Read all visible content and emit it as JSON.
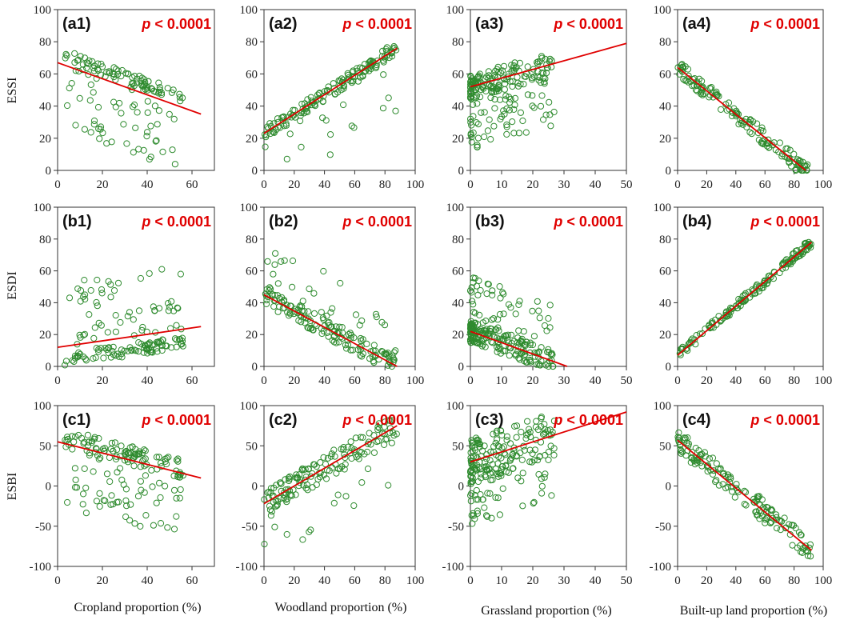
{
  "chart_data": {
    "type": "scatter",
    "layout": "3x4 grid",
    "marker": {
      "style": "open-circle",
      "color": "#2e8b2e"
    },
    "trend_line_color": "#e00000",
    "row_labels": [
      "ESSI",
      "ESDI",
      "ESBI"
    ],
    "column_labels": [
      "Cropland proportion (%)",
      "Woodland proportion (%)",
      "Grassland proportion (%)",
      "Built-up land proportion (%)"
    ],
    "panels": [
      {
        "label": "(a1)",
        "row": 0,
        "col": 0,
        "p_prefix": "p",
        "p_text": " < 0.0001",
        "xlim": [
          0,
          70
        ],
        "xticks": [
          0,
          20,
          40,
          60
        ],
        "ylim": [
          0,
          100
        ],
        "yticks": [
          0,
          20,
          40,
          60,
          80,
          100
        ],
        "trend": [
          [
            0,
            67
          ],
          [
            64,
            35
          ]
        ],
        "cluster": {
          "x": [
            3,
            56
          ],
          "tight_pts": 80,
          "tight_spread": 4,
          "loose_pts": 60,
          "loose_low": 12
        }
      },
      {
        "label": "(a2)",
        "row": 0,
        "col": 1,
        "p_prefix": "p",
        "p_text": " < 0.0001",
        "xlim": [
          0,
          100
        ],
        "xticks": [
          0,
          20,
          40,
          60,
          80,
          100
        ],
        "ylim": [
          0,
          100
        ],
        "yticks": [
          0,
          20,
          40,
          60,
          80,
          100
        ],
        "trend": [
          [
            0,
            23
          ],
          [
            88,
            76
          ]
        ],
        "cluster": {
          "x": [
            0,
            88
          ],
          "tight_pts": 140,
          "tight_spread": 4,
          "loose_pts": 20,
          "loose_low": 0
        }
      },
      {
        "label": "(a3)",
        "row": 0,
        "col": 2,
        "p_prefix": "p",
        "p_text": " < 0.0001",
        "xlim": [
          0,
          50
        ],
        "xticks": [
          0,
          10,
          20,
          30,
          40,
          50
        ],
        "ylim": [
          0,
          100
        ],
        "yticks": [
          0,
          20,
          40,
          60,
          80,
          100
        ],
        "trend": [
          [
            0,
            52
          ],
          [
            50,
            79
          ]
        ],
        "cluster": {
          "x": [
            0,
            27
          ],
          "tight_pts": 120,
          "tight_spread": 8,
          "loose_pts": 90,
          "loose_low": 10
        }
      },
      {
        "label": "(a4)",
        "row": 0,
        "col": 3,
        "p_prefix": "p",
        "p_text": " < 0.0001",
        "xlim": [
          0,
          100
        ],
        "xticks": [
          0,
          20,
          40,
          60,
          80,
          100
        ],
        "ylim": [
          0,
          100
        ],
        "yticks": [
          0,
          20,
          40,
          60,
          80,
          100
        ],
        "trend": [
          [
            0,
            64
          ],
          [
            88,
            0
          ]
        ],
        "cluster": {
          "x": [
            0,
            92
          ],
          "tight_pts": 140,
          "tight_spread": 5,
          "loose_pts": 0,
          "loose_low": 0
        }
      },
      {
        "label": "(b1)",
        "row": 1,
        "col": 0,
        "p_prefix": "p",
        "p_text": " < 0.0001",
        "xlim": [
          0,
          70
        ],
        "xticks": [
          0,
          20,
          40,
          60
        ],
        "ylim": [
          0,
          100
        ],
        "yticks": [
          0,
          20,
          40,
          60,
          80,
          100
        ],
        "trend": [
          [
            0,
            12
          ],
          [
            64,
            25
          ]
        ],
        "cluster": {
          "x": [
            3,
            56
          ],
          "tight_pts": 90,
          "tight_spread": 4,
          "loose_pts": 60,
          "loose_low": 20
        }
      },
      {
        "label": "(b2)",
        "row": 1,
        "col": 1,
        "p_prefix": "p",
        "p_text": " < 0.0001",
        "xlim": [
          0,
          100
        ],
        "xticks": [
          0,
          20,
          40,
          60,
          80,
          100
        ],
        "ylim": [
          0,
          100
        ],
        "yticks": [
          0,
          20,
          40,
          60,
          80,
          100
        ],
        "trend": [
          [
            0,
            45
          ],
          [
            88,
            0
          ]
        ],
        "cluster": {
          "x": [
            0,
            88
          ],
          "tight_pts": 140,
          "tight_spread": 6,
          "loose_pts": 30,
          "loose_low": 0
        }
      },
      {
        "label": "(b3)",
        "row": 1,
        "col": 2,
        "p_prefix": "p",
        "p_text": " < 0.0001",
        "xlim": [
          0,
          50
        ],
        "xticks": [
          0,
          10,
          20,
          30,
          40,
          50
        ],
        "ylim": [
          0,
          100
        ],
        "yticks": [
          0,
          20,
          40,
          60,
          80,
          100
        ],
        "trend": [
          [
            0,
            22
          ],
          [
            31,
            0
          ]
        ],
        "cluster": {
          "x": [
            0,
            27
          ],
          "tight_pts": 170,
          "tight_spread": 7,
          "loose_pts": 60,
          "loose_low": 0
        }
      },
      {
        "label": "(b4)",
        "row": 1,
        "col": 3,
        "p_prefix": "p",
        "p_text": " < 0.0001",
        "xlim": [
          0,
          100
        ],
        "xticks": [
          0,
          20,
          40,
          60,
          80,
          100
        ],
        "ylim": [
          0,
          100
        ],
        "yticks": [
          0,
          20,
          40,
          60,
          80,
          100
        ],
        "trend": [
          [
            0,
            7
          ],
          [
            92,
            78
          ]
        ],
        "cluster": {
          "x": [
            0,
            92
          ],
          "tight_pts": 150,
          "tight_spread": 3,
          "loose_pts": 0,
          "loose_low": 0
        }
      },
      {
        "label": "(c1)",
        "row": 2,
        "col": 0,
        "p_prefix": "p",
        "p_text": " < 0.0001",
        "xlim": [
          0,
          70
        ],
        "xticks": [
          0,
          20,
          40,
          60
        ],
        "ylim": [
          -100,
          100
        ],
        "yticks": [
          -100,
          -50,
          0,
          50,
          100
        ],
        "trend": [
          [
            0,
            55
          ],
          [
            64,
            10
          ]
        ],
        "cluster": {
          "x": [
            3,
            56
          ],
          "tight_pts": 90,
          "tight_spread": 6,
          "loose_pts": 70,
          "loose_low": -50
        }
      },
      {
        "label": "(c2)",
        "row": 2,
        "col": 1,
        "p_prefix": "p",
        "p_text": " < 0.0001",
        "xlim": [
          0,
          100
        ],
        "xticks": [
          0,
          20,
          40,
          60,
          80,
          100
        ],
        "ylim": [
          -100,
          100
        ],
        "yticks": [
          -100,
          -50,
          0,
          50,
          100
        ],
        "trend": [
          [
            0,
            -22
          ],
          [
            88,
            75
          ]
        ],
        "cluster": {
          "x": [
            0,
            88
          ],
          "tight_pts": 140,
          "tight_spread": 8,
          "loose_pts": 20,
          "loose_low": -60
        }
      },
      {
        "label": "(c3)",
        "row": 2,
        "col": 2,
        "p_prefix": "p",
        "p_text": " < 0.0001",
        "xlim": [
          0,
          50
        ],
        "xticks": [
          0,
          10,
          20,
          30,
          40,
          50
        ],
        "ylim": [
          -100,
          100
        ],
        "yticks": [
          -100,
          -50,
          0,
          50,
          100
        ],
        "trend": [
          [
            0,
            30
          ],
          [
            50,
            92
          ]
        ],
        "cluster": {
          "x": [
            0,
            27
          ],
          "tight_pts": 140,
          "tight_spread": 14,
          "loose_pts": 70,
          "loose_low": -60
        }
      },
      {
        "label": "(c4)",
        "row": 2,
        "col": 3,
        "p_prefix": "p",
        "p_text": " < 0.0001",
        "xlim": [
          0,
          100
        ],
        "xticks": [
          0,
          20,
          40,
          60,
          80,
          100
        ],
        "ylim": [
          -100,
          100
        ],
        "yticks": [
          -100,
          -50,
          0,
          50,
          100
        ],
        "trend": [
          [
            0,
            57
          ],
          [
            92,
            -80
          ]
        ],
        "cluster": {
          "x": [
            0,
            92
          ],
          "tight_pts": 150,
          "tight_spread": 7,
          "loose_pts": 0,
          "loose_low": 0
        }
      }
    ]
  }
}
